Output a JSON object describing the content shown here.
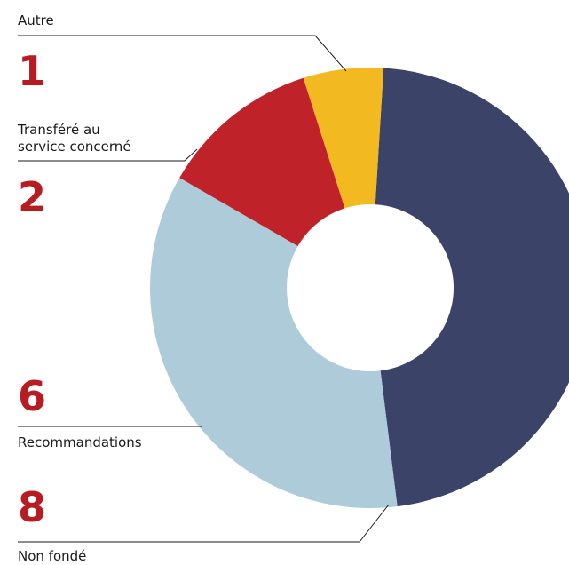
{
  "chart_data": {
    "type": "pie",
    "categories": [
      "Non fondé",
      "Recommandations",
      "Transféré au service concerné",
      "Autre"
    ],
    "values": [
      8,
      6,
      2,
      1
    ],
    "colors": [
      "#3b4368",
      "#aecbd9",
      "#c0222a",
      "#f2b920"
    ]
  }
}
